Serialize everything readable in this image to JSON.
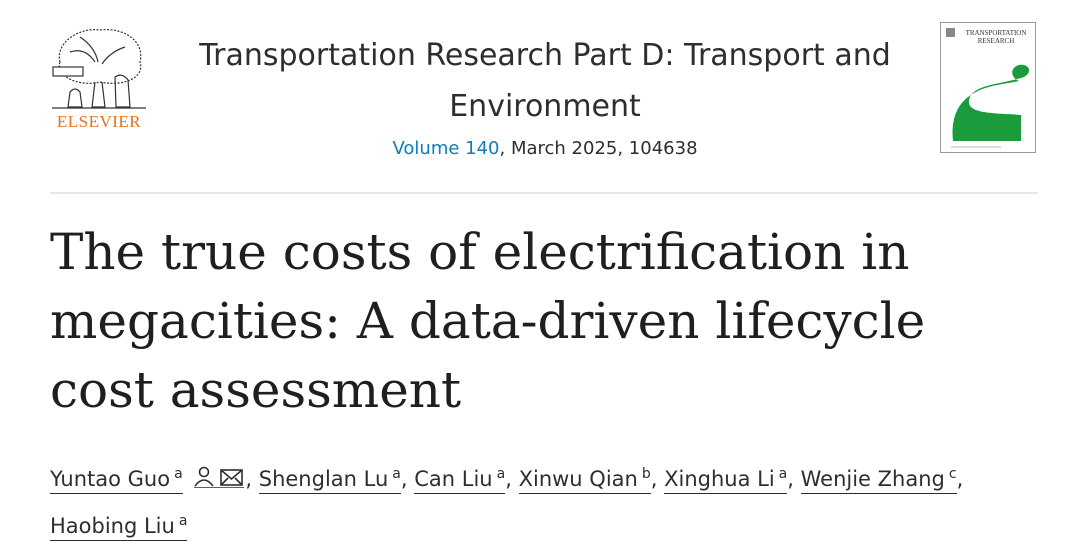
{
  "header": {
    "publisher": "ELSEVIER",
    "journal_title": "Transportation Research Part D: Transport and Environment",
    "volume_link": "Volume 140",
    "volume_rest": ", March 2025, 104638",
    "cover_title": "TRANSPORTATION RESEARCH"
  },
  "article": {
    "title": "The true costs of electrification in megacities: A data-driven lifecycle cost assessment",
    "separator": ",",
    "authors": [
      {
        "name": "Yuntao Guo",
        "affiliation": "a",
        "icons": true
      },
      {
        "name": "Shenglan Lu",
        "affiliation": "a"
      },
      {
        "name": "Can Liu",
        "affiliation": "a"
      },
      {
        "name": "Xinwu Qian",
        "affiliation": "b"
      },
      {
        "name": "Xinghua Li",
        "affiliation": "a"
      },
      {
        "name": "Wenjie Zhang",
        "affiliation": "c"
      },
      {
        "name": "Haobing Liu",
        "affiliation": "a"
      }
    ]
  }
}
